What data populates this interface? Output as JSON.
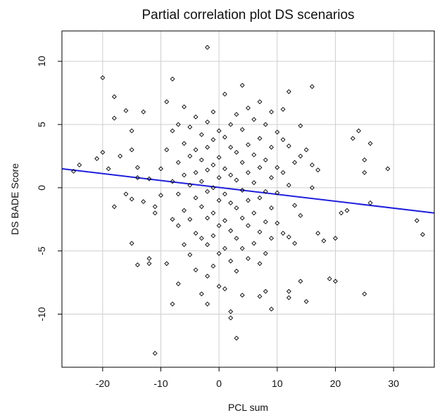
{
  "chart_data": {
    "type": "scatter",
    "title": "Partial correlation plot DS scenarios",
    "xlabel": "PCL sum",
    "ylabel": "DS BADE Score",
    "xlim": [
      -27,
      37
    ],
    "ylim": [
      -14.2,
      12.4
    ],
    "xticks": [
      -20,
      -10,
      0,
      10,
      20,
      30
    ],
    "yticks": [
      -10,
      -5,
      0,
      5,
      10
    ],
    "grid": true,
    "colors": {
      "points": "#000000",
      "fit_line": "#1f1fdd",
      "grid": "#cfcfcf",
      "frame": "#000000"
    },
    "fit_line": {
      "x": [
        -27,
        37
      ],
      "y": [
        1.5,
        -2.0
      ]
    },
    "points": [
      [
        -25,
        1.3
      ],
      [
        -24,
        1.8
      ],
      [
        -20,
        8.7
      ],
      [
        -20,
        2.8
      ],
      [
        -21,
        2.3
      ],
      [
        -19,
        1.5
      ],
      [
        -18,
        7.2
      ],
      [
        -18,
        5.5
      ],
      [
        -18,
        -1.5
      ],
      [
        -17,
        2.5
      ],
      [
        -16,
        6.1
      ],
      [
        -16,
        -0.5
      ],
      [
        -15,
        4.5
      ],
      [
        -15,
        3.0
      ],
      [
        -15,
        -4.4
      ],
      [
        -15,
        -0.9
      ],
      [
        -14,
        1.6
      ],
      [
        -14,
        0.8
      ],
      [
        -14,
        -6.1
      ],
      [
        -13,
        6.0
      ],
      [
        -13,
        -1.1
      ],
      [
        -12,
        0.7
      ],
      [
        -12,
        -6.0
      ],
      [
        -12,
        -5.6
      ],
      [
        -11,
        -2.0
      ],
      [
        -11,
        -1.5
      ],
      [
        -11,
        -13.1
      ],
      [
        -10,
        -0.6
      ],
      [
        -10,
        1.5
      ],
      [
        -9,
        3.0
      ],
      [
        -9,
        6.8
      ],
      [
        -9,
        -6.0
      ],
      [
        -8,
        8.6
      ],
      [
        -8,
        4.5
      ],
      [
        -8,
        0.5
      ],
      [
        -8,
        -2.5
      ],
      [
        -8,
        -9.2
      ],
      [
        -7,
        5.0
      ],
      [
        -7,
        2.0
      ],
      [
        -7,
        -0.5
      ],
      [
        -7,
        -3.0
      ],
      [
        -7,
        -7.6
      ],
      [
        -6,
        6.4
      ],
      [
        -6,
        3.5
      ],
      [
        -6,
        1.0
      ],
      [
        -6,
        -1.8
      ],
      [
        -6,
        -4.5
      ],
      [
        -5,
        4.8
      ],
      [
        -5,
        2.5
      ],
      [
        -5,
        0.2
      ],
      [
        -5,
        -2.5
      ],
      [
        -5,
        -5.3
      ],
      [
        -4,
        5.6
      ],
      [
        -4,
        3.0
      ],
      [
        -4,
        1.2
      ],
      [
        -4,
        -0.8
      ],
      [
        -4,
        -3.6
      ],
      [
        -4,
        -6.5
      ],
      [
        -3,
        4.2
      ],
      [
        -3,
        2.2
      ],
      [
        -3,
        0.5
      ],
      [
        -3,
        -1.5
      ],
      [
        -3,
        -4.0
      ],
      [
        -3,
        -8.4
      ],
      [
        -2,
        11.1
      ],
      [
        -2,
        5.2
      ],
      [
        -2,
        3.2
      ],
      [
        -2,
        1.4
      ],
      [
        -2,
        -0.3
      ],
      [
        -2,
        -2.4
      ],
      [
        -2,
        -4.5
      ],
      [
        -2,
        -7.0
      ],
      [
        -2,
        -9.2
      ],
      [
        -1,
        6.0
      ],
      [
        -1,
        3.8
      ],
      [
        -1,
        1.8
      ],
      [
        -1,
        0.0
      ],
      [
        -1,
        -2.0
      ],
      [
        -1,
        -3.8
      ],
      [
        -1,
        -6.2
      ],
      [
        0,
        4.5
      ],
      [
        0,
        2.4
      ],
      [
        0,
        0.8
      ],
      [
        0,
        -1.0
      ],
      [
        0,
        -3.0
      ],
      [
        0,
        -5.2
      ],
      [
        0,
        -7.8
      ],
      [
        1,
        7.4
      ],
      [
        1,
        4.0
      ],
      [
        1,
        1.5
      ],
      [
        1,
        -0.5
      ],
      [
        1,
        -2.6
      ],
      [
        1,
        -4.8
      ],
      [
        1,
        -8.0
      ],
      [
        2,
        5.0
      ],
      [
        2,
        3.2
      ],
      [
        2,
        1.0
      ],
      [
        2,
        -1.2
      ],
      [
        2,
        -3.4
      ],
      [
        2,
        -5.8
      ],
      [
        2,
        -9.8
      ],
      [
        2,
        -10.3
      ],
      [
        3,
        5.8
      ],
      [
        3,
        2.8
      ],
      [
        3,
        0.6
      ],
      [
        3,
        -1.6
      ],
      [
        3,
        -4.0
      ],
      [
        3,
        -6.6
      ],
      [
        3,
        -11.9
      ],
      [
        4,
        8.1
      ],
      [
        4,
        4.6
      ],
      [
        4,
        2.0
      ],
      [
        4,
        -0.2
      ],
      [
        4,
        -2.4
      ],
      [
        4,
        -4.8
      ],
      [
        4,
        -8.5
      ],
      [
        5,
        6.3
      ],
      [
        5,
        3.4
      ],
      [
        5,
        1.2
      ],
      [
        5,
        -1.0
      ],
      [
        5,
        -3.0
      ],
      [
        5,
        -5.6
      ],
      [
        6,
        5.4
      ],
      [
        6,
        2.6
      ],
      [
        6,
        0.4
      ],
      [
        6,
        -2.0
      ],
      [
        6,
        -4.4
      ],
      [
        7,
        6.8
      ],
      [
        7,
        3.9
      ],
      [
        7,
        1.6
      ],
      [
        7,
        -0.8
      ],
      [
        7,
        -3.5
      ],
      [
        7,
        -6.0
      ],
      [
        7,
        -8.6
      ],
      [
        8,
        5.0
      ],
      [
        8,
        2.2
      ],
      [
        8,
        -0.3
      ],
      [
        8,
        -2.7
      ],
      [
        8,
        -5.2
      ],
      [
        8,
        -8.2
      ],
      [
        9,
        6.0
      ],
      [
        9,
        3.2
      ],
      [
        9,
        0.8
      ],
      [
        9,
        -1.6
      ],
      [
        9,
        -4.0
      ],
      [
        9,
        -9.6
      ],
      [
        10,
        4.4
      ],
      [
        10,
        1.6
      ],
      [
        10,
        -0.4
      ],
      [
        10,
        -2.8
      ],
      [
        11,
        6.2
      ],
      [
        11,
        3.8
      ],
      [
        11,
        1.2
      ],
      [
        11,
        -3.6
      ],
      [
        12,
        7.6
      ],
      [
        12,
        3.3
      ],
      [
        12,
        0.2
      ],
      [
        12,
        -3.9
      ],
      [
        12,
        -8.2
      ],
      [
        12,
        -8.7
      ],
      [
        13,
        2.0
      ],
      [
        13,
        -1.4
      ],
      [
        13,
        -4.4
      ],
      [
        14,
        4.9
      ],
      [
        14,
        2.5
      ],
      [
        14,
        -2.2
      ],
      [
        14,
        -7.4
      ],
      [
        15,
        -9.0
      ],
      [
        15,
        3.0
      ],
      [
        16,
        8.0
      ],
      [
        16,
        1.8
      ],
      [
        16,
        0.0
      ],
      [
        17,
        1.4
      ],
      [
        17,
        -3.6
      ],
      [
        18,
        -4.2
      ],
      [
        19,
        -7.2
      ],
      [
        20,
        -7.4
      ],
      [
        20,
        -4.0
      ],
      [
        21,
        -2.0
      ],
      [
        22,
        -1.8
      ],
      [
        23,
        3.9
      ],
      [
        24,
        4.5
      ],
      [
        25,
        1.2
      ],
      [
        25,
        2.2
      ],
      [
        25,
        -8.4
      ],
      [
        26,
        3.5
      ],
      [
        26,
        -1.2
      ],
      [
        29,
        1.5
      ],
      [
        34,
        -2.6
      ],
      [
        35,
        -3.7
      ]
    ]
  }
}
